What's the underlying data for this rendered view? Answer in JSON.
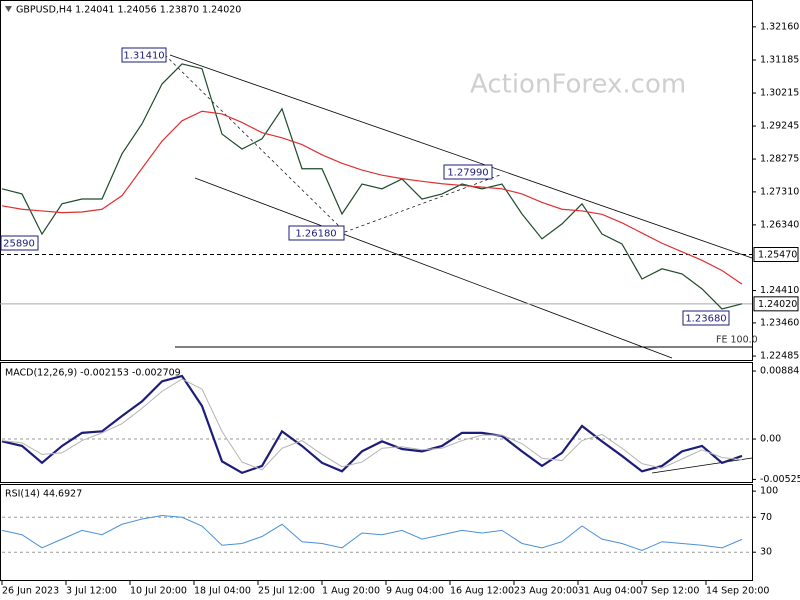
{
  "title": "GBPUSD,H4  1.24041 1.24056 1.23870 1.24020",
  "watermark": "ActionForex.com",
  "time_axis": {
    "labels": [
      "26 Jun 2023",
      "3 Jul 12:00",
      "10 Jul 20:00",
      "18 Jul 04:00",
      "25 Jul 12:00",
      "1 Aug 20:00",
      "9 Aug 04:00",
      "16 Aug 12:00",
      "23 Aug 20:00",
      "31 Aug 04:00",
      "7 Sep 12:00",
      "14 Sep 20:00"
    ]
  },
  "annotations": [
    "1.31410",
    "1.26180",
    "1.27990",
    "1.23680",
    "25890"
  ],
  "chart_data": [
    {
      "type": "line",
      "ylim": [
        1.2234,
        1.3292
      ],
      "yticks": [
        {
          "value": 1.3216,
          "label": "1.32160"
        },
        {
          "value": 1.31185,
          "label": "1.31185"
        },
        {
          "value": 1.30215,
          "label": "1.30215"
        },
        {
          "value": 1.29245,
          "label": "1.29245"
        },
        {
          "value": 1.28275,
          "label": "1.28275"
        },
        {
          "value": 1.2731,
          "label": "1.27310"
        },
        {
          "value": 1.2634,
          "label": "1.26340"
        },
        {
          "value": 1.2441,
          "label": "1.24410"
        },
        {
          "value": 1.2346,
          "label": "1.23460"
        },
        {
          "value": 1.22485,
          "label": "1.22485"
        }
      ],
      "levels": [
        {
          "value": 1.2547,
          "label": "1.25470",
          "style": "dashed"
        },
        {
          "value": 1.2402,
          "label": "1.24020",
          "style": "solid"
        },
        {
          "value": 1.2275,
          "label": "FE 100.0",
          "style": "fe"
        }
      ],
      "series": [
        {
          "color": "#1f4a2a",
          "width": 1.2,
          "values": [
            1.274,
            1.2725,
            1.2607,
            1.2696,
            1.271,
            1.271,
            1.2843,
            1.2931,
            1.3048,
            1.3107,
            1.3093,
            1.2901,
            1.2857,
            1.2887,
            1.2975,
            1.2799,
            1.2799,
            1.2666,
            1.2754,
            1.274,
            1.2769,
            1.271,
            1.2725,
            1.2754,
            1.274,
            1.2754,
            1.2666,
            1.2593,
            1.2637,
            1.2696,
            1.2607,
            1.2578,
            1.2475,
            1.2505,
            1.249,
            1.2446,
            1.2387,
            1.2402
          ]
        },
        {
          "color": "#e03030",
          "width": 1.2,
          "values": [
            1.269,
            1.268,
            1.2675,
            1.267,
            1.2672,
            1.268,
            1.272,
            1.28,
            1.288,
            1.294,
            1.2968,
            1.296,
            1.2935,
            1.2905,
            1.289,
            1.287,
            1.284,
            1.2815,
            1.2795,
            1.278,
            1.277,
            1.2762,
            1.2755,
            1.275,
            1.2745,
            1.274,
            1.2725,
            1.27,
            1.268,
            1.2675,
            1.2665,
            1.264,
            1.261,
            1.258,
            1.2555,
            1.253,
            1.25,
            1.246
          ]
        }
      ]
    },
    {
      "type": "line",
      "title": "MACD(12,26,9) -0.002153 -0.002709",
      "ylim": [
        -0.00572,
        0.00989
      ],
      "yticks": [
        0.008846,
        {
          "value": 0,
          "label": "0.00"
        },
        -0.005252
      ],
      "grid_at": [
        1
      ],
      "series": [
        {
          "color": "#1c1c7a",
          "width": 2.2,
          "values": [
            -0.0003,
            -0.0009,
            -0.0031,
            -0.0009,
            0.0008,
            0.001,
            0.003,
            0.0049,
            0.0075,
            0.0082,
            0.0043,
            -0.0029,
            -0.0044,
            -0.0035,
            0.001,
            -0.0009,
            -0.0031,
            -0.0042,
            -0.0016,
            -0.0003,
            -0.0013,
            -0.0016,
            -0.0009,
            0.0008,
            0.0008,
            0.0004,
            -0.0016,
            -0.0035,
            -0.0018,
            0.0017,
            -0.0003,
            -0.0022,
            -0.0042,
            -0.0035,
            -0.0016,
            -0.0009,
            -0.0031,
            -0.0022
          ]
        },
        {
          "color": "#b4b4b4",
          "width": 1,
          "values": [
            -0.0002,
            -0.0005,
            -0.002,
            -0.0018,
            -0.0002,
            0.0008,
            0.002,
            0.004,
            0.0062,
            0.0078,
            0.0065,
            0.001,
            -0.003,
            -0.004,
            -0.0012,
            -0.0002,
            -0.002,
            -0.0036,
            -0.003,
            -0.0012,
            -0.001,
            -0.0014,
            -0.0012,
            -0.0002,
            0.0005,
            0.0005,
            -0.0006,
            -0.0025,
            -0.0028,
            -0.0002,
            0.0006,
            -0.0012,
            -0.0032,
            -0.0038,
            -0.0026,
            -0.0014,
            -0.0024,
            -0.0027
          ]
        }
      ]
    },
    {
      "type": "line",
      "title": "RSI(14) 44.6927",
      "ylim": [
        -3,
        107
      ],
      "yticks": [
        100,
        70,
        30
      ],
      "grid_at": [
        1,
        2
      ],
      "series": [
        {
          "color": "#4a90d9",
          "width": 1,
          "values": [
            55,
            50,
            35,
            45,
            55,
            50,
            62,
            68,
            72,
            70,
            60,
            38,
            40,
            48,
            62,
            42,
            40,
            35,
            52,
            50,
            55,
            45,
            50,
            55,
            52,
            55,
            40,
            35,
            42,
            60,
            45,
            40,
            32,
            42,
            40,
            38,
            35,
            44.6927
          ]
        }
      ]
    }
  ]
}
